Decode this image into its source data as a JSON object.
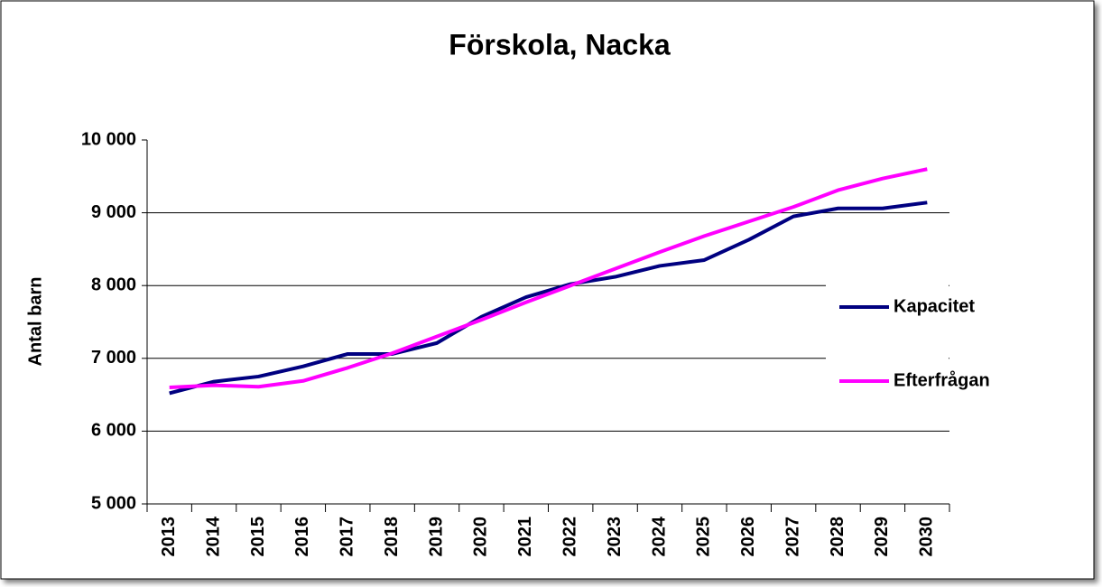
{
  "chart_data": {
    "type": "line",
    "title": "Förskola, Nacka",
    "y_label": "Antal barn",
    "categories": [
      "2013",
      "2014",
      "2015",
      "2016",
      "2017",
      "2018",
      "2019",
      "2020",
      "2021",
      "2022",
      "2023",
      "2024",
      "2025",
      "2026",
      "2027",
      "2028",
      "2029",
      "2030"
    ],
    "series": [
      {
        "name": "Kapacitet",
        "color": "#000080",
        "values": [
          6520,
          6680,
          6750,
          6890,
          7060,
          7060,
          7210,
          7570,
          7840,
          8020,
          8120,
          8270,
          8350,
          8630,
          8950,
          9060,
          9060,
          9140
        ]
      },
      {
        "name": "Efterfrågan",
        "color": "#ff00ff",
        "values": [
          6600,
          6630,
          6610,
          6690,
          6870,
          7070,
          7300,
          7530,
          7770,
          8000,
          8230,
          8460,
          8680,
          8880,
          9080,
          9310,
          9470,
          9600
        ]
      }
    ],
    "ylim": [
      5000,
      10000
    ],
    "yticks": [
      {
        "value": 5000,
        "label": "5 000"
      },
      {
        "value": 6000,
        "label": "6 000"
      },
      {
        "value": 7000,
        "label": "7 000"
      },
      {
        "value": 8000,
        "label": "8 000"
      },
      {
        "value": 9000,
        "label": "9 000"
      },
      {
        "value": 10000,
        "label": "10 000"
      }
    ],
    "grid": true,
    "legend": "right"
  }
}
